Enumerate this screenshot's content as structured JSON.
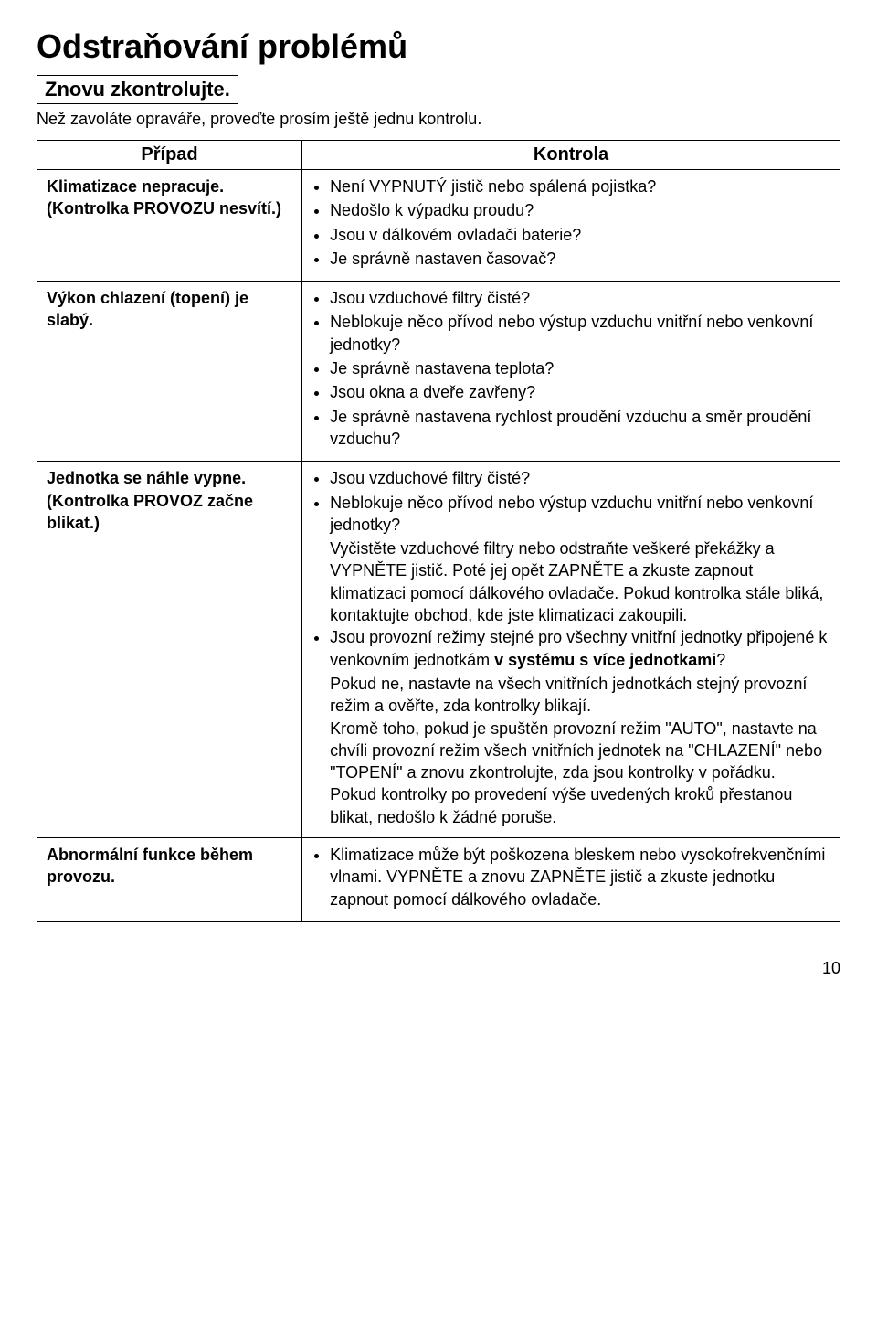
{
  "title": "Odstraňování problémů",
  "subheading": "Znovu zkontrolujte.",
  "intro": "Než zavoláte opraváře, proveďte prosím ještě jednu kontrolu.",
  "headers": {
    "case": "Případ",
    "check": "Kontrola"
  },
  "rows": {
    "r1": {
      "case_l1": "Klimatizace nepracuje.",
      "case_l2": "(Kontrolka PROVOZU nesvítí.)",
      "b1": "Není VYPNUTÝ jistič nebo spálená pojistka?",
      "b2": "Nedošlo k výpadku proudu?",
      "b3": "Jsou v dálkovém ovladači baterie?",
      "b4": "Je správně nastaven časovač?"
    },
    "r2": {
      "case_l1": "Výkon chlazení (topení) je slabý.",
      "b1": "Jsou vzduchové filtry čisté?",
      "b2": "Neblokuje něco přívod nebo výstup vzduchu vnitřní nebo venkovní jednotky?",
      "b3": "Je správně nastavena teplota?",
      "b4": "Jsou okna a dveře zavřeny?",
      "b5": "Je správně nastavena rychlost proudění vzduchu a směr proudění vzduchu?"
    },
    "r3": {
      "case_l1": "Jednotka se náhle vypne.",
      "case_l2": "(Kontrolka PROVOZ začne blikat.)",
      "b1": "Jsou vzduchové filtry čisté?",
      "b2": "Neblokuje něco přívod nebo výstup vzduchu vnitřní nebo venkovní jednotky?",
      "p2a": "Vyčistěte vzduchové filtry nebo odstraňte veškeré překážky a VYPNĚTE jistič. Poté jej opět ZAPNĚTE a zkuste zapnout klimatizaci pomocí dálkového ovladače. Pokud kontrolka stále bliká, kontaktujte obchod, kde jste klimatizaci zakoupili.",
      "b3_pre": "Jsou provozní režimy stejné pro všechny vnitřní jednotky připojené k venkovním jednotkám ",
      "b3_bold": "v systému s více jednotkami",
      "b3_post": "?",
      "p3a": "Pokud ne, nastavte na všech vnitřních jednotkách stejný provozní režim a ověřte, zda kontrolky blikají.",
      "p3b": "Kromě toho, pokud je spuštěn provozní režim \"AUTO\", nastavte na chvíli provozní režim všech vnitřních jednotek na \"CHLAZENÍ\" nebo \"TOPENÍ\" a znovu zkontrolujte, zda jsou kontrolky v pořádku.",
      "p3c": "Pokud kontrolky po provedení výše uvedených kroků přestanou blikat, nedošlo k žádné poruše."
    },
    "r4": {
      "case_l1": "Abnormální funkce během provozu.",
      "b1": "Klimatizace může být poškozena bleskem nebo vysokofrekvenčními vlnami. VYPNĚTE a znovu ZAPNĚTE jistič a zkuste jednotku zapnout pomocí dálkového ovladače."
    }
  },
  "page_number": "10"
}
